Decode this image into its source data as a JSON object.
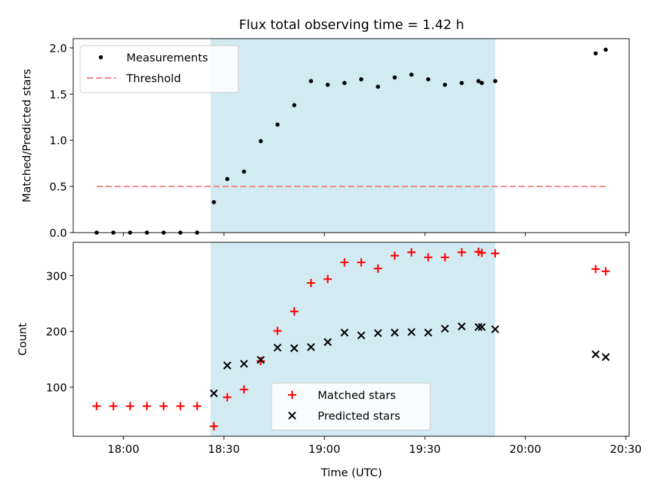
{
  "figure": {
    "title": "Flux total observing time = 1.42 h",
    "xlabel": "Time (UTC)",
    "x_ticks": [
      "18:00",
      "18:30",
      "19:00",
      "19:30",
      "20:00",
      "20:30"
    ],
    "shade_color": "#add8e6"
  },
  "chart_data": [
    {
      "type": "scatter",
      "ylabel": "Matched/Predicted stars",
      "xlim": [
        "17:45",
        "20:31"
      ],
      "ylim": [
        0,
        2.1
      ],
      "y_ticks": [
        "0.0",
        "0.5",
        "1.0",
        "1.5",
        "2.0"
      ],
      "shaded_span": [
        "18:26",
        "19:51"
      ],
      "legend": {
        "location": "upper-left",
        "entries": [
          "Measurements",
          "Threshold"
        ]
      },
      "series": [
        {
          "name": "Measurements",
          "marker": "dot",
          "color": "#000000",
          "points": [
            [
              "17:52",
              0.0
            ],
            [
              "17:57",
              0.0
            ],
            [
              "18:02",
              0.0
            ],
            [
              "18:07",
              0.0
            ],
            [
              "18:12",
              0.0
            ],
            [
              "18:17",
              0.0
            ],
            [
              "18:22",
              0.0
            ],
            [
              "18:27",
              0.33
            ],
            [
              "18:31",
              0.58
            ],
            [
              "18:36",
              0.66
            ],
            [
              "18:41",
              0.99
            ],
            [
              "18:46",
              1.17
            ],
            [
              "18:51",
              1.38
            ],
            [
              "18:56",
              1.64
            ],
            [
              "19:01",
              1.6
            ],
            [
              "19:06",
              1.62
            ],
            [
              "19:11",
              1.66
            ],
            [
              "19:16",
              1.58
            ],
            [
              "19:21",
              1.68
            ],
            [
              "19:26",
              1.71
            ],
            [
              "19:31",
              1.66
            ],
            [
              "19:36",
              1.6
            ],
            [
              "19:41",
              1.62
            ],
            [
              "19:46",
              1.64
            ],
            [
              "19:47",
              1.62
            ],
            [
              "19:51",
              1.64
            ],
            [
              "20:21",
              1.94
            ],
            [
              "20:24",
              1.98
            ]
          ]
        },
        {
          "name": "Threshold",
          "style": "dashed",
          "color": "#f08080",
          "points": [
            [
              "17:52",
              0.5
            ],
            [
              "20:24",
              0.5
            ]
          ]
        }
      ]
    },
    {
      "type": "scatter",
      "ylabel": "Count",
      "xlim": [
        "17:45",
        "20:31"
      ],
      "ylim": [
        12,
        360
      ],
      "y_ticks": [
        "100",
        "200",
        "300"
      ],
      "shaded_span": [
        "18:26",
        "19:51"
      ],
      "legend": {
        "location": "lower-center",
        "entries": [
          "Matched stars",
          "Predicted stars"
        ]
      },
      "series": [
        {
          "name": "Matched stars",
          "marker": "plus",
          "color": "#ff0000",
          "points": [
            [
              "17:52",
              66
            ],
            [
              "17:57",
              66
            ],
            [
              "18:02",
              66
            ],
            [
              "18:07",
              66
            ],
            [
              "18:12",
              66
            ],
            [
              "18:17",
              66
            ],
            [
              "18:22",
              66
            ],
            [
              "18:27",
              30
            ],
            [
              "18:31",
              82
            ],
            [
              "18:36",
              96
            ],
            [
              "18:41",
              147
            ],
            [
              "18:46",
              201
            ],
            [
              "18:51",
              236
            ],
            [
              "18:56",
              287
            ],
            [
              "19:01",
              294
            ],
            [
              "19:06",
              324
            ],
            [
              "19:11",
              324
            ],
            [
              "19:16",
              313
            ],
            [
              "19:21",
              336
            ],
            [
              "19:26",
              342
            ],
            [
              "19:31",
              333
            ],
            [
              "19:36",
              333
            ],
            [
              "19:41",
              342
            ],
            [
              "19:46",
              343
            ],
            [
              "19:47",
              341
            ],
            [
              "19:51",
              340
            ],
            [
              "20:21",
              312
            ],
            [
              "20:24",
              308
            ]
          ]
        },
        {
          "name": "Predicted stars",
          "marker": "x",
          "color": "#000000",
          "points": [
            [
              "18:27",
              89
            ],
            [
              "18:31",
              139
            ],
            [
              "18:36",
              142
            ],
            [
              "18:41",
              149
            ],
            [
              "18:46",
              171
            ],
            [
              "18:51",
              170
            ],
            [
              "18:56",
              172
            ],
            [
              "19:01",
              181
            ],
            [
              "19:06",
              198
            ],
            [
              "19:11",
              193
            ],
            [
              "19:16",
              197
            ],
            [
              "19:21",
              198
            ],
            [
              "19:26",
              199
            ],
            [
              "19:31",
              198
            ],
            [
              "19:36",
              205
            ],
            [
              "19:41",
              209
            ],
            [
              "19:46",
              208
            ],
            [
              "19:47",
              208
            ],
            [
              "19:51",
              204
            ],
            [
              "20:21",
              159
            ],
            [
              "20:24",
              154
            ]
          ]
        }
      ]
    }
  ]
}
